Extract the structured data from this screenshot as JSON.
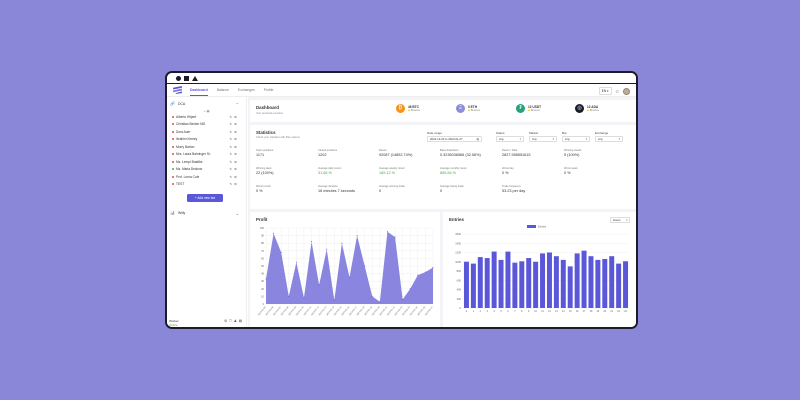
{
  "nav": {
    "items": [
      {
        "label": "Dashboard",
        "active": true
      },
      {
        "label": "Balance",
        "active": false
      },
      {
        "label": "Exchanges",
        "active": false
      },
      {
        "label": "Profile",
        "active": false
      }
    ],
    "lang": "EN",
    "lang_arrow": "▾"
  },
  "sidebar": {
    "groups": [
      {
        "name": "DCA",
        "expanded": true,
        "bots": [
          {
            "name": "Alberto Hilpert",
            "color": "#e34b4b"
          },
          {
            "name": "Christian Becker MD",
            "color": "#e34b4b"
          },
          {
            "name": "Dora Auer",
            "color": "#e34b4b"
          },
          {
            "name": "Ibrahim Kinney",
            "color": "#e34b4b"
          },
          {
            "name": "Murry Barton",
            "color": "#e34b4b"
          },
          {
            "name": "Mrs. Laura Bahringer Sr.",
            "color": "#e34b4b"
          },
          {
            "name": "Ms. Lempi Bradtke",
            "color": "#e34b4b"
          },
          {
            "name": "Ms. Maria Deckow",
            "color": "#3bb34a"
          },
          {
            "name": "Prof. Lorna Cole",
            "color": "#e34b4b"
          },
          {
            "name": "TEST",
            "color": "#e34b4b"
          }
        ]
      },
      {
        "name": "Willy",
        "expanded": false,
        "bots": []
      }
    ],
    "add_button": "+ Add new bot",
    "footer": {
      "user": "Worker",
      "status": "Online"
    }
  },
  "dashboard": {
    "title": "Dashboard",
    "subtitle": "Your personal overview",
    "coins": [
      {
        "amount": "46 BTC",
        "exchange": "Binance",
        "color": "#f7931a",
        "glyph": "₿"
      },
      {
        "amount": "0 ETH",
        "exchange": "Binance",
        "color": "#8c8fd6",
        "glyph": "Ξ"
      },
      {
        "amount": "12 USDT",
        "exchange": "Binance",
        "color": "#26a17b",
        "glyph": "₮"
      },
      {
        "amount": "12 ADA",
        "exchange": "Binance",
        "color": "#1b1b2a",
        "glyph": "◎"
      }
    ]
  },
  "statistics": {
    "title": "Statistics",
    "subtitle": "Check your statistics with filter options",
    "filters": [
      {
        "label": "Date range",
        "value": "2022-12-20 to 2023-01-27"
      },
      {
        "label": "Status",
        "value": "Any"
      },
      {
        "label": "Market",
        "value": "Any"
      },
      {
        "label": "Bot",
        "value": "Any"
      },
      {
        "label": "Exchange",
        "value": "Any"
      }
    ],
    "metrics_row1": [
      {
        "label": "Open positions",
        "value": "1171",
        "green": false
      },
      {
        "label": "Closed positions",
        "value": "1202",
        "green": false
      },
      {
        "label": "Return",
        "value": "92087 (14852.74%)",
        "green": false
      },
      {
        "label": "Base drawdown",
        "value": "0.3236036566 (32.56%)",
        "green": false
      },
      {
        "label": "Return / Risk",
        "value": "2827.958551615",
        "green": false
      },
      {
        "label": "Winning weeks",
        "value": "5 (100%)",
        "green": false
      }
    ],
    "metrics_row2": [
      {
        "label": "Winning days",
        "value": "22 (100%)",
        "green": false
      },
      {
        "label": "Average daily return",
        "value": "31.86 %",
        "green": true
      },
      {
        "label": "Average weekly return",
        "value": "189.12 %",
        "green": true
      },
      {
        "label": "Average monthly return",
        "value": "865.84 %",
        "green": true
      },
      {
        "label": "Worst day",
        "value": "0 %",
        "green": false
      },
      {
        "label": "Worst week",
        "value": "0 %",
        "green": false
      }
    ],
    "metrics_row3": [
      {
        "label": "Worst month",
        "value": "0 %",
        "green": false
      },
      {
        "label": "Average duration",
        "value": "16 minutes 7 seconds",
        "green": false
      },
      {
        "label": "Average winning trade",
        "value": "0",
        "green": false
      },
      {
        "label": "Average losing trade",
        "value": "0",
        "green": false
      },
      {
        "label": "Trade frequency",
        "value": "53.23 per day",
        "green": false
      }
    ]
  },
  "profit_chart": {
    "title": "Profit",
    "chart_data": {
      "type": "area",
      "ylim": [
        0,
        100
      ],
      "yticks": [
        0,
        10,
        20,
        30,
        40,
        50,
        60,
        70,
        80,
        90,
        100
      ],
      "x": [
        "2023-01-05",
        "2023-01-06",
        "2023-01-07",
        "2023-01-08",
        "2023-01-09",
        "2023-01-10",
        "2023-01-11",
        "2023-01-12",
        "2023-01-13",
        "2023-01-14",
        "2023-01-15",
        "2023-01-16",
        "2023-01-17",
        "2023-01-18",
        "2023-01-19",
        "2023-01-20",
        "2023-01-21",
        "2023-01-22",
        "2023-01-23",
        "2023-01-24",
        "2023-01-25",
        "2023-01-26",
        "2023-01-27"
      ],
      "values": [
        33,
        93,
        68,
        10,
        55,
        8,
        82,
        25,
        72,
        5,
        80,
        35,
        90,
        50,
        10,
        3,
        95,
        88,
        6,
        20,
        38,
        42,
        48
      ],
      "color": "#8a86e0"
    }
  },
  "entries_chart": {
    "title": "Entries",
    "dropdown": "Hours",
    "legend": "Entries",
    "chart_data": {
      "type": "bar",
      "ylim": [
        0,
        1600
      ],
      "yticks": [
        0,
        200,
        400,
        600,
        800,
        1000,
        1200,
        1400,
        1600
      ],
      "categories": [
        "0",
        "1",
        "2",
        "3",
        "4",
        "5",
        "6",
        "7",
        "8",
        "9",
        "10",
        "11",
        "12",
        "13",
        "14",
        "15",
        "16",
        "17",
        "18",
        "19",
        "20",
        "21",
        "22",
        "23"
      ],
      "values": [
        1000,
        960,
        1100,
        1080,
        1220,
        1040,
        1220,
        980,
        1010,
        1080,
        1000,
        1180,
        1200,
        1120,
        1040,
        900,
        1180,
        1240,
        1120,
        1040,
        1060,
        1120,
        960,
        1010
      ],
      "color": "#5b57d9"
    }
  }
}
